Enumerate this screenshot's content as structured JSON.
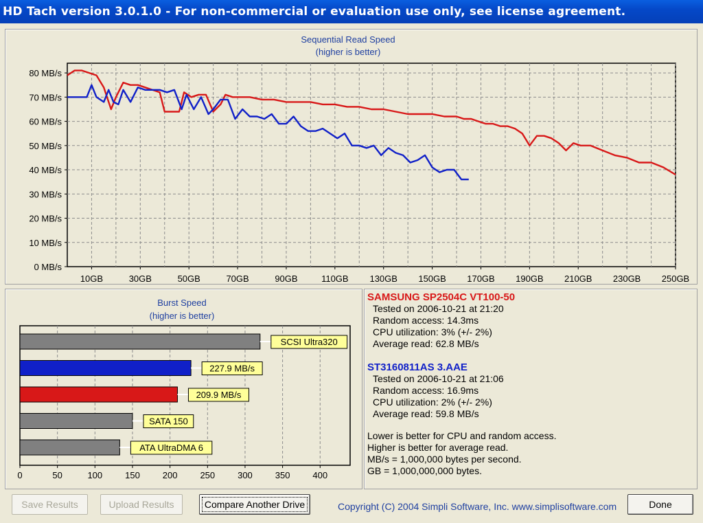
{
  "window": {
    "title": "HD Tach version 3.0.1.0  - For non-commercial or evaluation use only, see license agreement."
  },
  "colors": {
    "drive1": "#d81818",
    "drive2": "#1020c8",
    "reference": "#808080",
    "label_bg": "#ffff99",
    "grid": "#8c8c8c"
  },
  "seq_chart": {
    "title": "Sequential Read Speed",
    "subtitle": "(higher is better)",
    "y_ticks": [
      "0 MB/s",
      "10 MB/s",
      "20 MB/s",
      "30 MB/s",
      "40 MB/s",
      "50 MB/s",
      "60 MB/s",
      "70 MB/s",
      "80 MB/s"
    ],
    "x_ticks": [
      "10GB",
      "30GB",
      "50GB",
      "70GB",
      "90GB",
      "110GB",
      "130GB",
      "150GB",
      "170GB",
      "190GB",
      "210GB",
      "230GB",
      "250GB"
    ]
  },
  "chart_data": [
    {
      "type": "line",
      "title": "Sequential Read Speed",
      "subtitle": "(higher is better)",
      "xlabel": "",
      "ylabel": "",
      "xlim": [
        0,
        250
      ],
      "ylim": [
        0,
        84
      ],
      "x_unit": "GB",
      "y_unit": "MB/s",
      "grid": true,
      "series": [
        {
          "name": "SAMSUNG SP2504C VT100-50",
          "color": "#d81818",
          "points": [
            [
              0,
              79
            ],
            [
              3,
              81
            ],
            [
              6,
              81
            ],
            [
              9,
              80
            ],
            [
              12,
              79
            ],
            [
              15,
              74
            ],
            [
              18,
              65
            ],
            [
              20,
              70
            ],
            [
              23,
              76
            ],
            [
              26,
              75
            ],
            [
              29,
              75
            ],
            [
              32,
              74
            ],
            [
              35,
              73
            ],
            [
              38,
              72
            ],
            [
              40,
              64
            ],
            [
              43,
              64
            ],
            [
              46,
              64
            ],
            [
              48,
              72
            ],
            [
              51,
              70
            ],
            [
              54,
              71
            ],
            [
              57,
              71
            ],
            [
              60,
              64
            ],
            [
              63,
              67
            ],
            [
              65,
              71
            ],
            [
              68,
              70
            ],
            [
              71,
              70
            ],
            [
              75,
              70
            ],
            [
              80,
              69
            ],
            [
              85,
              69
            ],
            [
              90,
              68
            ],
            [
              95,
              68
            ],
            [
              100,
              68
            ],
            [
              105,
              67
            ],
            [
              110,
              67
            ],
            [
              115,
              66
            ],
            [
              120,
              66
            ],
            [
              125,
              65
            ],
            [
              130,
              65
            ],
            [
              135,
              64
            ],
            [
              140,
              63
            ],
            [
              145,
              63
            ],
            [
              150,
              63
            ],
            [
              155,
              62
            ],
            [
              160,
              62
            ],
            [
              163,
              61
            ],
            [
              166,
              61
            ],
            [
              169,
              60
            ],
            [
              172,
              59
            ],
            [
              175,
              59
            ],
            [
              178,
              58
            ],
            [
              181,
              58
            ],
            [
              184,
              57
            ],
            [
              187,
              55
            ],
            [
              190,
              50
            ],
            [
              193,
              54
            ],
            [
              196,
              54
            ],
            [
              199,
              53
            ],
            [
              202,
              51
            ],
            [
              205,
              48
            ],
            [
              208,
              51
            ],
            [
              211,
              50
            ],
            [
              215,
              50
            ],
            [
              220,
              48
            ],
            [
              225,
              46
            ],
            [
              230,
              45
            ],
            [
              235,
              43
            ],
            [
              240,
              43
            ],
            [
              245,
              41
            ],
            [
              250,
              38
            ]
          ]
        },
        {
          "name": "ST3160811AS 3.AAE",
          "color": "#1020c8",
          "points": [
            [
              0,
              70
            ],
            [
              3,
              70
            ],
            [
              6,
              70
            ],
            [
              8,
              70
            ],
            [
              10,
              75
            ],
            [
              12,
              70
            ],
            [
              15,
              68
            ],
            [
              17,
              73
            ],
            [
              19,
              68
            ],
            [
              21,
              67
            ],
            [
              23,
              73
            ],
            [
              26,
              68
            ],
            [
              29,
              74
            ],
            [
              32,
              73
            ],
            [
              35,
              73
            ],
            [
              38,
              73
            ],
            [
              41,
              72
            ],
            [
              44,
              73
            ],
            [
              47,
              65
            ],
            [
              49,
              71
            ],
            [
              52,
              65
            ],
            [
              55,
              70
            ],
            [
              58,
              63
            ],
            [
              60,
              65
            ],
            [
              63,
              69
            ],
            [
              66,
              69
            ],
            [
              69,
              61
            ],
            [
              72,
              65
            ],
            [
              75,
              62
            ],
            [
              78,
              62
            ],
            [
              81,
              61
            ],
            [
              84,
              63
            ],
            [
              87,
              59
            ],
            [
              90,
              59
            ],
            [
              93,
              62
            ],
            [
              96,
              58
            ],
            [
              99,
              56
            ],
            [
              102,
              56
            ],
            [
              105,
              57
            ],
            [
              108,
              55
            ],
            [
              111,
              53
            ],
            [
              114,
              55
            ],
            [
              117,
              50
            ],
            [
              120,
              50
            ],
            [
              123,
              49
            ],
            [
              126,
              50
            ],
            [
              129,
              46
            ],
            [
              132,
              49
            ],
            [
              135,
              47
            ],
            [
              138,
              46
            ],
            [
              141,
              43
            ],
            [
              144,
              44
            ],
            [
              147,
              46
            ],
            [
              150,
              41
            ],
            [
              153,
              39
            ],
            [
              156,
              40
            ],
            [
              159,
              40
            ],
            [
              162,
              36
            ],
            [
              165,
              36
            ]
          ]
        }
      ]
    },
    {
      "type": "bar",
      "orientation": "horizontal",
      "title": "Burst Speed",
      "subtitle": "(higher is better)",
      "x_ticks": [
        "0",
        "50",
        "100",
        "150",
        "200",
        "250",
        "300",
        "350",
        "400"
      ],
      "xlim": [
        0,
        440
      ],
      "bars": [
        {
          "label": "SCSI Ultra320",
          "value": 320,
          "color": "#808080"
        },
        {
          "label": "227.9 MB/s",
          "value": 227.9,
          "color": "#1020c8"
        },
        {
          "label": "209.9 MB/s",
          "value": 209.9,
          "color": "#d81818"
        },
        {
          "label": "SATA 150",
          "value": 150,
          "color": "#808080"
        },
        {
          "label": "ATA UltraDMA 6",
          "value": 133,
          "color": "#808080"
        }
      ]
    }
  ],
  "info": {
    "drive1": {
      "name": "SAMSUNG SP2504C VT100-50",
      "tested": "Tested on 2006-10-21 at 21:20",
      "random": "Random access: 14.3ms",
      "cpu": "CPU utilization: 3% (+/- 2%)",
      "avg": "Average read: 62.8 MB/s"
    },
    "drive2": {
      "name": "ST3160811AS 3.AAE",
      "tested": "Tested on 2006-10-21 at 21:06",
      "random": "Random access: 16.9ms",
      "cpu": "CPU utilization: 2% (+/- 2%)",
      "avg": "Average read: 59.8 MB/s"
    },
    "notes": [
      "Lower is better for CPU and random access.",
      "Higher is better for average read.",
      "MB/s = 1,000,000 bytes per second.",
      "GB = 1,000,000,000 bytes."
    ]
  },
  "buttons": {
    "save": "Save Results",
    "upload": "Upload Results",
    "compare": "Compare Another Drive",
    "done": "Done"
  },
  "copyright": "Copyright (C) 2004 Simpli Software, Inc. www.simplisoftware.com"
}
